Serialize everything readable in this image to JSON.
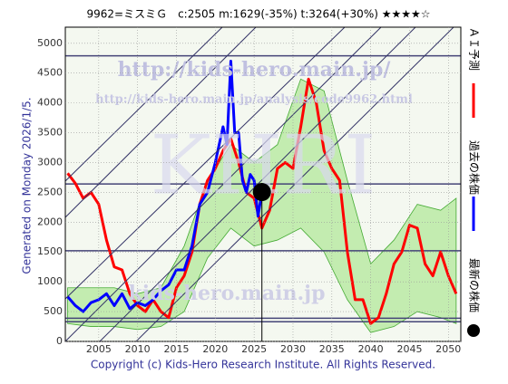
{
  "chart_data": {
    "type": "line",
    "title": "9962=ミスミＧ　c:2505  m:1629(-35%)  t:3264(+30%)  ★★★★☆",
    "side_note": "Generated on Monday 2026/1/5.",
    "footer": "Copyright (c) Kids-Hero Research Institute. All Rights Reserved.",
    "watermarks": [
      "http://kids-hero.main.jp/",
      "http://kids-hero.main.jp/analysis/code9962.html",
      "KHRI",
      "kids-hero.main.jp"
    ],
    "xlim": [
      2000.7,
      2051.6
    ],
    "ylim": [
      0,
      5270
    ],
    "xticks": [
      2005,
      2010,
      2015,
      2020,
      2025,
      2030,
      2035,
      2040,
      2045,
      2050
    ],
    "yticks": [
      0,
      500,
      1000,
      1500,
      2000,
      2500,
      3000,
      3500,
      4000,
      4500,
      5000
    ],
    "grid": true,
    "hlines": [
      4790,
      2640,
      1520,
      390,
      330
    ],
    "band": {
      "x": [
        2001,
        2004,
        2007,
        2010,
        2013,
        2016,
        2019,
        2022,
        2025,
        2028,
        2031,
        2034,
        2037,
        2040,
        2043,
        2046,
        2049,
        2051
      ],
      "lower": [
        300,
        250,
        250,
        200,
        250,
        500,
        1400,
        1900,
        1600,
        1700,
        1900,
        1500,
        700,
        150,
        250,
        500,
        400,
        300
      ],
      "upper": [
        900,
        900,
        900,
        800,
        900,
        1600,
        2700,
        3300,
        3000,
        3300,
        4400,
        4200,
        2700,
        1300,
        1700,
        2300,
        2200,
        2400
      ]
    },
    "series": [
      {
        "name": "ＡＩ予測",
        "color": "#ff0000",
        "x": [
          2001,
          2002,
          2003,
          2004,
          2005,
          2006,
          2007,
          2008,
          2009,
          2010,
          2011,
          2012,
          2013,
          2014,
          2015,
          2016,
          2017,
          2018,
          2019,
          2020,
          2021,
          2022,
          2023,
          2024,
          2025,
          2026,
          2027,
          2028,
          2029,
          2030,
          2031,
          2032,
          2033,
          2034,
          2035,
          2036,
          2037,
          2038,
          2039,
          2040,
          2041,
          2042,
          2043,
          2044,
          2045,
          2046,
          2047,
          2048,
          2049,
          2050,
          2051
        ],
        "values": [
          2820,
          2650,
          2400,
          2500,
          2300,
          1700,
          1250,
          1200,
          800,
          600,
          500,
          700,
          500,
          400,
          900,
          1100,
          1500,
          2300,
          2700,
          2900,
          3200,
          3400,
          3000,
          2500,
          2400,
          1900,
          2200,
          2900,
          3000,
          2900,
          3600,
          4400,
          4000,
          3200,
          2900,
          2700,
          1500,
          700,
          700,
          300,
          400,
          800,
          1300,
          1500,
          1950,
          1900,
          1300,
          1100,
          1500,
          1100,
          800
        ]
      },
      {
        "name": "過去の株価",
        "color": "#0000ff",
        "x": [
          2001,
          2002,
          2003,
          2004,
          2005,
          2006,
          2007,
          2008,
          2009,
          2010,
          2011,
          2012,
          2013,
          2014,
          2015,
          2016,
          2017,
          2018,
          2019,
          2020,
          2021,
          2021.5,
          2022,
          2022.5,
          2023,
          2023.5,
          2024,
          2024.5,
          2025,
          2025.5,
          2026
        ],
        "values": [
          750,
          600,
          500,
          650,
          700,
          800,
          600,
          800,
          550,
          650,
          600,
          700,
          850,
          950,
          1200,
          1200,
          1600,
          2300,
          2500,
          3000,
          3600,
          3300,
          4700,
          3500,
          3500,
          2700,
          2500,
          2800,
          2700,
          2100,
          2505
        ]
      },
      {
        "name": "最新の株価",
        "color": "#000000",
        "x": [
          2026
        ],
        "values": [
          2505
        ]
      }
    ]
  }
}
